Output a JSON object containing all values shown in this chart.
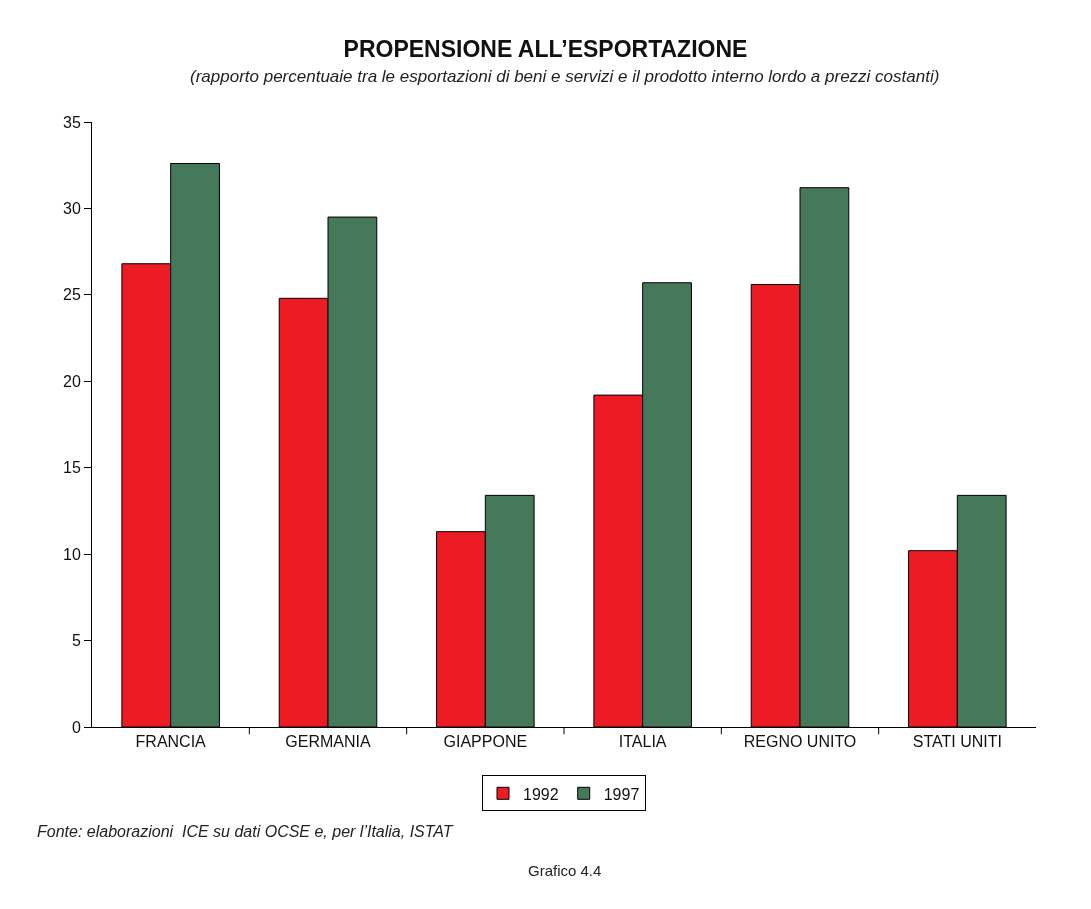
{
  "chart_data": {
    "type": "bar",
    "title": "PROPENSIONE ALL’ESPORTAZIONE",
    "subtitle": "(rapporto percentuaie tra le esportazioni di beni e servizi e il prodotto interno lordo a prezzi costanti)",
    "categories": [
      "FRANCIA",
      "GERMANIA",
      "GIAPPONE",
      "ITALIA",
      "REGNO UNITO",
      "STATI UNITI"
    ],
    "series": [
      {
        "name": "1992",
        "color": "#ed1c24",
        "values": [
          26.8,
          24.8,
          11.3,
          19.2,
          25.6,
          10.2
        ]
      },
      {
        "name": "1997",
        "color": "#46785a",
        "values": [
          32.6,
          29.5,
          13.4,
          25.7,
          31.2,
          13.4
        ]
      }
    ],
    "ylim": [
      0,
      35
    ],
    "yticks": [
      0,
      5,
      10,
      15,
      20,
      25,
      30,
      35
    ],
    "grid": false,
    "legend": "bottom",
    "annotations": [
      "Fonte: elaborazioni  ICE su dati OCSE e, per l’Italia, ISTAT",
      "Grafico 4.4"
    ]
  }
}
